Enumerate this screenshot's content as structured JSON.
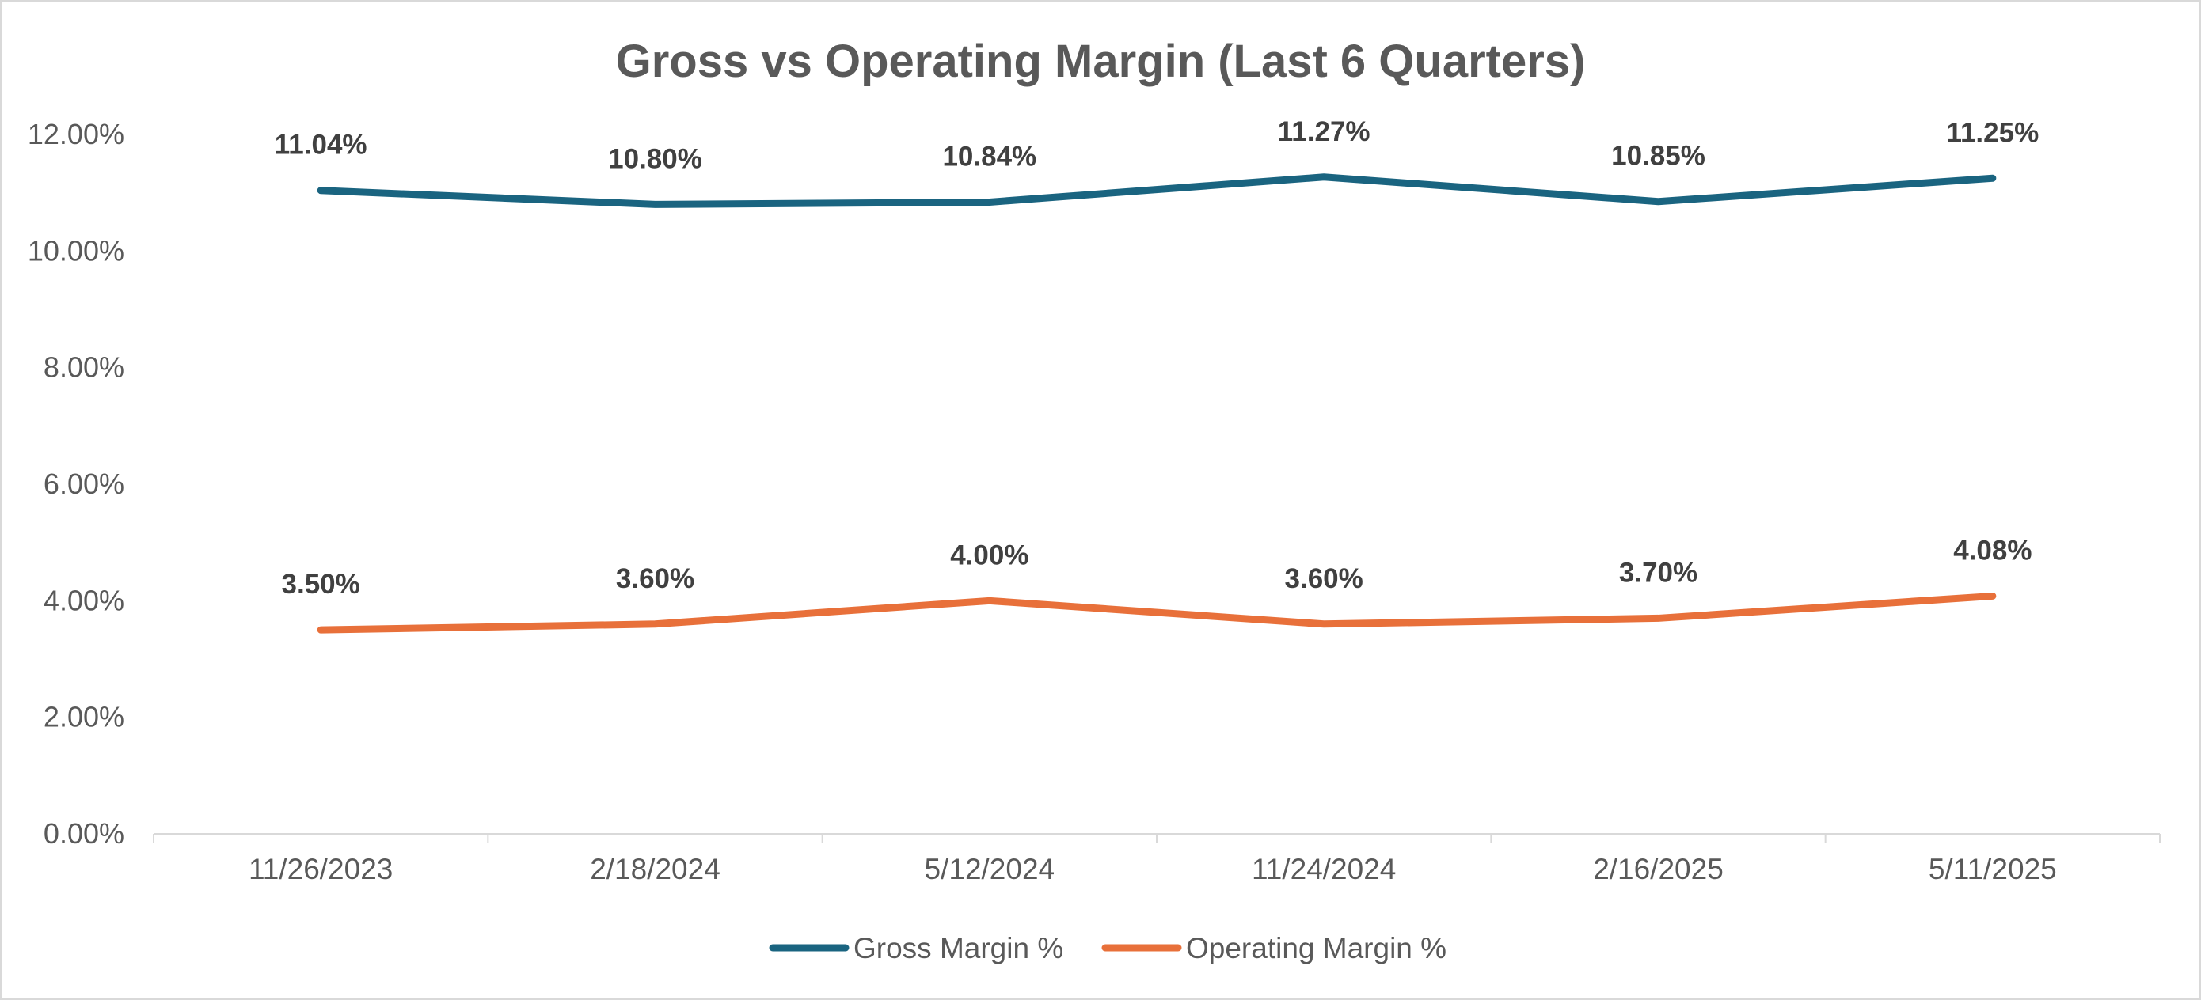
{
  "chart_data": {
    "type": "line",
    "title": "Gross vs Operating Margin (Last 6 Quarters)",
    "xlabel": "",
    "ylabel": "",
    "categories": [
      "11/26/2023",
      "2/18/2024",
      "5/12/2024",
      "11/24/2024",
      "2/16/2025",
      "5/11/2025"
    ],
    "ylim": [
      0,
      12
    ],
    "yticks": [
      0,
      2,
      4,
      6,
      8,
      10,
      12
    ],
    "ytick_labels": [
      "0.00%",
      "2.00%",
      "4.00%",
      "6.00%",
      "8.00%",
      "10.00%",
      "12.00%"
    ],
    "grid": false,
    "legend_position": "bottom",
    "series": [
      {
        "name": "Gross Margin %",
        "color": "#1a6480",
        "values": [
          11.04,
          10.8,
          10.84,
          11.27,
          10.85,
          11.25
        ],
        "labels": [
          "11.04%",
          "10.80%",
          "10.84%",
          "11.27%",
          "10.85%",
          "11.25%"
        ]
      },
      {
        "name": "Operating Margin %",
        "color": "#e8703a",
        "values": [
          3.5,
          3.6,
          4.0,
          3.6,
          3.7,
          4.08
        ],
        "labels": [
          "3.50%",
          "3.60%",
          "4.00%",
          "3.60%",
          "3.70%",
          "4.08%"
        ]
      }
    ]
  }
}
